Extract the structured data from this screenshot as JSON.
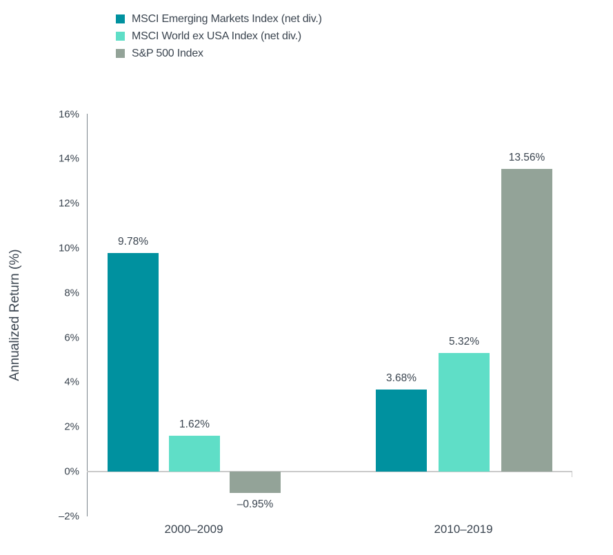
{
  "chart_data": {
    "type": "bar",
    "title": "",
    "categories": [
      "2000–2009",
      "2010–2019"
    ],
    "series": [
      {
        "name": "MSCI Emerging Markets Index (net div.)",
        "color": "#00919F",
        "values": [
          9.78,
          3.68
        ],
        "value_labels": [
          "9.78%",
          "3.68%"
        ]
      },
      {
        "name": "MSCI World ex USA Index (net div.)",
        "color": "#5FDEC7",
        "values": [
          1.62,
          5.32
        ],
        "value_labels": [
          "1.62%",
          "5.32%"
        ]
      },
      {
        "name": "S&P 500 Index",
        "color": "#93A398",
        "values": [
          -0.95,
          13.56
        ],
        "value_labels": [
          "–0.95%",
          "13.56%"
        ]
      }
    ],
    "xlabel": "",
    "ylabel": "Annualized Return (%)",
    "ylim": [
      -2,
      16
    ],
    "yticks": [
      {
        "value": 16,
        "label": "16%"
      },
      {
        "value": 14,
        "label": "14%"
      },
      {
        "value": 12,
        "label": "12%"
      },
      {
        "value": 10,
        "label": "10%"
      },
      {
        "value": 8,
        "label": "8%"
      },
      {
        "value": 6,
        "label": "6%"
      },
      {
        "value": 4,
        "label": "4%"
      },
      {
        "value": 2,
        "label": "2%"
      },
      {
        "value": 0,
        "label": "0%"
      },
      {
        "value": -2,
        "label": "–2%"
      }
    ],
    "grid": false,
    "legend_position": "top-left",
    "colors": {
      "text": "#3A444F",
      "y_axis_line": "#7C848C",
      "zero_line": "#C9C9C9"
    }
  }
}
